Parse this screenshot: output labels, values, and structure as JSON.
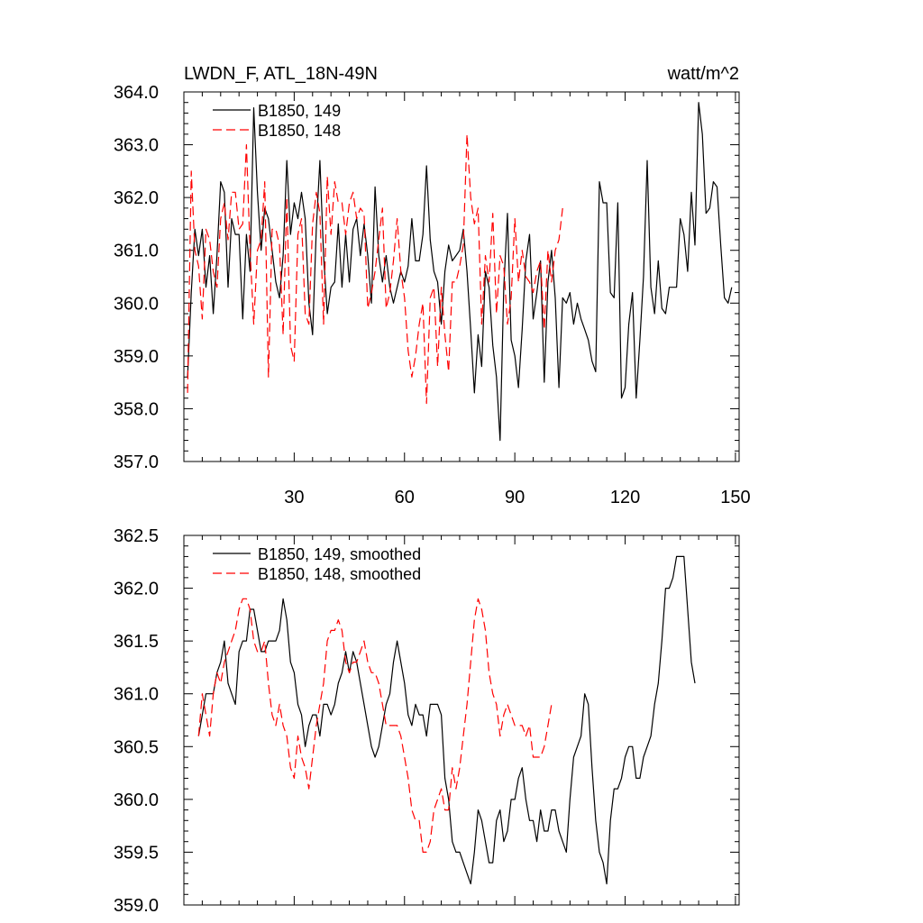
{
  "chart_data": [
    {
      "type": "line",
      "title": "LWDN_F, ATL_18N-49N",
      "units_label": "watt/m^2",
      "xlim": [
        0,
        151
      ],
      "ylim": [
        357,
        364
      ],
      "x_ticks": [
        30,
        60,
        90,
        120,
        150
      ],
      "y_ticks": [
        357,
        358,
        359,
        360,
        361,
        362,
        363,
        364
      ],
      "y_tick_labels": [
        "357.0",
        "358.0",
        "359.0",
        "360.0",
        "361.0",
        "362.0",
        "363.0",
        "364.0"
      ],
      "x_tick_labels": [
        "30",
        "60",
        "90",
        "120",
        "150"
      ],
      "legend_position": "top-left",
      "series": [
        {
          "name": "B1850, 149",
          "color": "#000000",
          "dash": "solid",
          "x_start": 1,
          "values": [
            358.6,
            360.2,
            361.4,
            360.9,
            361.4,
            360.3,
            360.9,
            359.8,
            360.9,
            362.3,
            362.1,
            360.3,
            361.6,
            361.3,
            361.3,
            359.7,
            361.3,
            360.6,
            363.7,
            362.1,
            361.0,
            361.8,
            361.6,
            361.0,
            360.4,
            360.1,
            360.9,
            362.7,
            361.3,
            361.9,
            361.6,
            362.1,
            361.6,
            360.0,
            359.4,
            361.4,
            362.7,
            360.9,
            359.8,
            360.3,
            360.4,
            361.5,
            360.3,
            361.3,
            360.4,
            361.4,
            361.6,
            360.9,
            361.5,
            360.9,
            360.0,
            362.2,
            360.9,
            360.4,
            360.9,
            360.3,
            360.0,
            360.3,
            360.6,
            360.4,
            360.7,
            361.6,
            360.8,
            360.8,
            361.3,
            362.6,
            361.2,
            360.6,
            360.4,
            359.6,
            360.6,
            361.1,
            360.8,
            360.9,
            361.0,
            361.4,
            360.6,
            359.5,
            358.3,
            359.4,
            358.8,
            360.6,
            360.3,
            359.2,
            358.6,
            357.4,
            360.3,
            361.7,
            359.3,
            359.0,
            358.4,
            359.5,
            360.8,
            361.3,
            359.7,
            360.2,
            360.8,
            358.5,
            360.4,
            361.0,
            360.1,
            358.4,
            360.1,
            360.0,
            360.2,
            359.6,
            360.0,
            359.7,
            359.5,
            359.3,
            358.9,
            358.7,
            362.3,
            361.9,
            361.9,
            360.2,
            360.1,
            361.9,
            358.2,
            358.4,
            359.6,
            360.2,
            358.2,
            359.3,
            360.5,
            362.7,
            360.3,
            359.8,
            360.8,
            359.9,
            359.8,
            360.3,
            360.3,
            360.3,
            361.6,
            361.3,
            360.6,
            362.1,
            361.1,
            363.8,
            363.2,
            361.7,
            361.8,
            362.3,
            362.2,
            361.1,
            360.1,
            360.0,
            360.3
          ]
        },
        {
          "name": "B1850, 148",
          "color": "#ff0000",
          "dash": "dashed",
          "x_start": 1,
          "values": [
            358.3,
            362.5,
            361.0,
            360.7,
            359.7,
            361.4,
            361.2,
            360.6,
            360.3,
            361.6,
            361.9,
            361.2,
            362.1,
            362.1,
            361.4,
            361.5,
            363.0,
            361.0,
            359.6,
            361.0,
            361.2,
            362.3,
            358.6,
            361.4,
            361.4,
            361.1,
            359.4,
            362.0,
            359.2,
            358.9,
            361.3,
            361.6,
            359.8,
            359.6,
            361.5,
            362.1,
            361.7,
            359.6,
            362.4,
            361.3,
            362.3,
            361.9,
            361.9,
            361.3,
            361.9,
            362.1,
            361.6,
            361.8,
            361.7,
            359.9,
            360.2,
            360.6,
            361.2,
            361.8,
            359.9,
            360.2,
            360.8,
            361.6,
            360.6,
            360.1,
            359.1,
            358.6,
            359.0,
            359.6,
            360.0,
            358.1,
            360.1,
            360.3,
            358.8,
            360.3,
            359.4,
            358.7,
            360.4,
            360.4,
            360.7,
            361.1,
            363.2,
            362.0,
            361.5,
            361.8,
            359.6,
            360.9,
            360.4,
            361.7,
            359.8,
            360.9,
            360.7,
            359.6,
            360.1,
            361.6,
            360.4,
            361.0,
            360.5,
            360.4,
            360.2,
            360.6,
            360.8,
            359.5,
            361.0,
            360.4,
            361.0,
            361.2,
            361.8
          ]
        }
      ]
    },
    {
      "type": "line",
      "title": "",
      "xlim": [
        0,
        151
      ],
      "ylim": [
        359,
        362.5
      ],
      "x_ticks": [
        30,
        60,
        90,
        120,
        150
      ],
      "y_ticks": [
        359,
        359.5,
        360,
        360.5,
        361,
        361.5,
        362,
        362.5
      ],
      "y_tick_labels": [
        "359.0",
        "359.5",
        "360.0",
        "360.5",
        "361.0",
        "361.5",
        "362.0",
        "362.5"
      ],
      "legend_position": "top-left",
      "series": [
        {
          "name": "B1850, 149, smoothed",
          "color": "#000000",
          "dash": "solid",
          "x_start": 4,
          "values": [
            360.6,
            360.8,
            361.0,
            361.0,
            361.0,
            361.2,
            361.3,
            361.5,
            361.1,
            361.0,
            360.9,
            361.4,
            361.5,
            361.5,
            361.8,
            361.8,
            361.6,
            361.4,
            361.4,
            361.5,
            361.5,
            361.5,
            361.6,
            361.9,
            361.7,
            361.3,
            361.2,
            360.9,
            360.8,
            360.5,
            360.7,
            360.8,
            360.8,
            360.6,
            360.9,
            360.9,
            360.8,
            360.9,
            361.1,
            361.2,
            361.4,
            361.2,
            361.4,
            361.3,
            361.1,
            360.9,
            360.7,
            360.5,
            360.4,
            360.5,
            360.7,
            360.9,
            361.0,
            361.3,
            361.5,
            361.3,
            361.1,
            360.8,
            360.7,
            360.9,
            360.8,
            360.8,
            360.6,
            360.9,
            360.9,
            360.9,
            360.8,
            360.2,
            360.0,
            359.6,
            359.5,
            359.5,
            359.4,
            359.3,
            359.2,
            359.5,
            359.9,
            359.8,
            359.6,
            359.4,
            359.4,
            359.8,
            359.9,
            359.6,
            359.7,
            360.0,
            360.0,
            360.2,
            360.3,
            360.0,
            359.8,
            359.8,
            359.6,
            359.9,
            359.7,
            359.7,
            359.9,
            359.9,
            359.7,
            359.6,
            359.5,
            360.0,
            360.4,
            360.5,
            360.6,
            361.0,
            360.9,
            360.3,
            359.8,
            359.5,
            359.4,
            359.2,
            359.8,
            360.1,
            360.1,
            360.2,
            360.4,
            360.5,
            360.5,
            360.2,
            360.2,
            360.4,
            360.5,
            360.6,
            360.9,
            361.1,
            361.5,
            362.0,
            362.0,
            362.1,
            362.3,
            362.3,
            362.3,
            361.8,
            361.3,
            361.1
          ]
        },
        {
          "name": "B1850, 148, smoothed",
          "color": "#ff0000",
          "dash": "dashed",
          "x_start": 4,
          "values": [
            360.6,
            361.0,
            360.8,
            360.6,
            361.0,
            361.2,
            361.1,
            361.3,
            361.4,
            361.5,
            361.6,
            361.8,
            361.9,
            361.9,
            361.8,
            361.5,
            361.4,
            361.4,
            361.5,
            361.1,
            360.8,
            360.7,
            360.9,
            360.7,
            360.6,
            360.3,
            360.2,
            360.6,
            360.4,
            360.3,
            360.1,
            360.4,
            360.7,
            360.9,
            361.1,
            361.5,
            361.6,
            361.6,
            361.7,
            361.6,
            361.3,
            361.2,
            361.3,
            361.3,
            361.4,
            361.5,
            361.3,
            361.2,
            361.2,
            361.1,
            360.9,
            360.7,
            360.7,
            360.7,
            360.7,
            360.6,
            360.4,
            360.2,
            359.9,
            359.8,
            359.8,
            359.5,
            359.5,
            359.6,
            359.9,
            360.0,
            360.1,
            359.9,
            359.9,
            360.3,
            360.1,
            360.3,
            360.6,
            360.9,
            361.3,
            361.7,
            361.9,
            361.8,
            361.6,
            361.2,
            361.0,
            360.9,
            360.6,
            360.8,
            360.9,
            360.8,
            360.7,
            360.7,
            360.7,
            360.6,
            360.7,
            360.4,
            360.4,
            360.4,
            360.5,
            360.7,
            360.9
          ]
        }
      ]
    }
  ]
}
